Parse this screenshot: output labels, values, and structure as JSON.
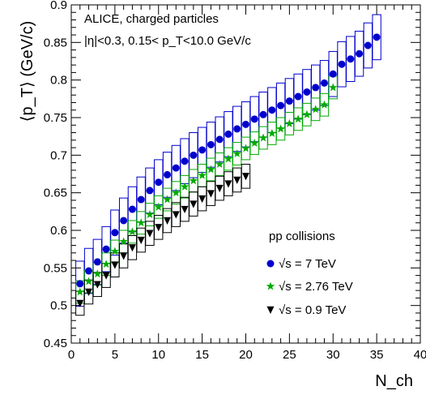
{
  "chart_data": {
    "type": "scatter",
    "annotations": {
      "line1": "ALICE, charged particles",
      "line2": "|η|<0.3, 0.15< p_T<10.0 GeV/c",
      "legend_title": "pp collisions"
    },
    "ylabel": "⟨p_T⟩ (GeV/c)",
    "xlabel": "N_ch",
    "xlim": [
      0,
      40
    ],
    "ylim": [
      0.45,
      0.9
    ],
    "xticks": [
      0,
      5,
      10,
      15,
      20,
      25,
      30,
      35,
      40
    ],
    "yticks": [
      0.45,
      0.5,
      0.55,
      0.6,
      0.65,
      0.7,
      0.75,
      0.8,
      0.85,
      0.9
    ],
    "grid": false,
    "legend_position": "bottom-right",
    "series": [
      {
        "name": "√s = 7 TeV",
        "marker": "circle",
        "color": "#0000cc",
        "box_color": "#0000cc",
        "x": [
          1,
          2,
          3,
          4,
          5,
          6,
          7,
          8,
          9,
          10,
          11,
          12,
          13,
          14,
          15,
          16,
          17,
          18,
          19,
          20,
          21,
          22,
          23,
          24,
          25,
          26,
          27,
          28,
          29,
          30,
          31,
          32,
          33,
          34,
          35
        ],
        "y": [
          0.529,
          0.546,
          0.558,
          0.575,
          0.597,
          0.613,
          0.628,
          0.641,
          0.653,
          0.664,
          0.674,
          0.683,
          0.692,
          0.7,
          0.707,
          0.714,
          0.721,
          0.728,
          0.735,
          0.741,
          0.748,
          0.754,
          0.76,
          0.766,
          0.772,
          0.778,
          0.784,
          0.79,
          0.796,
          0.808,
          0.821,
          0.828,
          0.835,
          0.846,
          0.857
        ],
        "syst": 0.03
      },
      {
        "name": "√s = 2.76 TeV",
        "marker": "star",
        "color": "#00aa00",
        "box_color": "#00aa00",
        "x": [
          1,
          2,
          3,
          4,
          5,
          6,
          7,
          8,
          9,
          10,
          11,
          12,
          13,
          14,
          15,
          16,
          17,
          18,
          19,
          20,
          21,
          22,
          23,
          24,
          25,
          26,
          27,
          28,
          29,
          30
        ],
        "y": [
          0.518,
          0.532,
          0.542,
          0.555,
          0.572,
          0.585,
          0.598,
          0.61,
          0.621,
          0.631,
          0.641,
          0.65,
          0.658,
          0.666,
          0.673,
          0.681,
          0.688,
          0.695,
          0.702,
          0.709,
          0.716,
          0.723,
          0.729,
          0.735,
          0.742,
          0.748,
          0.754,
          0.761,
          0.767,
          0.79
        ],
        "syst": 0.015
      },
      {
        "name": "√s = 0.9 TeV",
        "marker": "triangle-down",
        "color": "#000000",
        "box_color": "#000000",
        "x": [
          1,
          2,
          3,
          4,
          5,
          6,
          7,
          8,
          9,
          10,
          11,
          12,
          13,
          14,
          15,
          16,
          17,
          18,
          19,
          20
        ],
        "y": [
          0.503,
          0.518,
          0.528,
          0.54,
          0.554,
          0.566,
          0.577,
          0.587,
          0.596,
          0.604,
          0.613,
          0.621,
          0.628,
          0.635,
          0.642,
          0.649,
          0.656,
          0.662,
          0.667,
          0.672
        ],
        "syst": 0.016
      }
    ]
  }
}
